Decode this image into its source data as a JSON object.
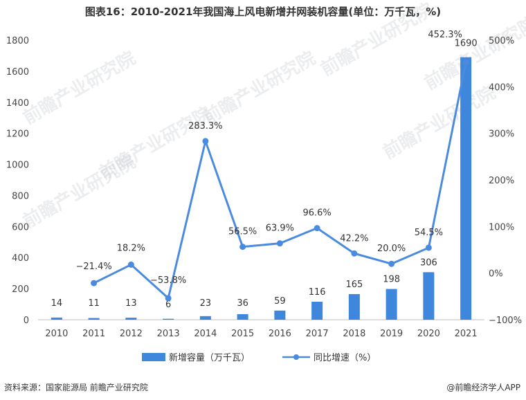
{
  "chart_data": {
    "type": "bar+line",
    "title": "图表16：2010-2021年我国海上风电新增并网装机容量(单位：万千瓦，%)",
    "categories": [
      "2010",
      "2011",
      "2012",
      "2013",
      "2014",
      "2015",
      "2016",
      "2017",
      "2018",
      "2019",
      "2020",
      "2021"
    ],
    "series": [
      {
        "name": "新增容量（万千瓦）",
        "type": "bar",
        "axis": "left",
        "values": [
          14,
          11,
          13,
          6,
          23,
          36,
          59,
          116,
          165,
          198,
          306,
          1690
        ],
        "labels": [
          "14",
          "11",
          "13",
          "6",
          "23",
          "36",
          "59",
          "116",
          "165",
          "198",
          "306",
          "1690"
        ]
      },
      {
        "name": "同比增速（%）",
        "type": "line",
        "axis": "right",
        "values": [
          null,
          -21.4,
          18.2,
          -53.8,
          283.3,
          56.5,
          63.9,
          96.6,
          42.2,
          20.0,
          54.5,
          452.3
        ],
        "labels": [
          "",
          "−21.4%",
          "18.2%",
          "−53.8%",
          "283.3%",
          "56.5%",
          "63.9%",
          "96.6%",
          "42.2%",
          "20.0%",
          "54.5%",
          "452.3%"
        ]
      }
    ],
    "y_left": {
      "min": 0,
      "max": 1800,
      "ticks": [
        "0",
        "200",
        "400",
        "600",
        "800",
        "1000",
        "1200",
        "1400",
        "1600",
        "1800"
      ]
    },
    "y_right": {
      "min": -100,
      "max": 500,
      "ticks": [
        "−100%",
        "0%",
        "100%",
        "200%",
        "300%",
        "400%",
        "500%"
      ]
    },
    "legend_position": "bottom-center",
    "colors": {
      "bar": "#3f86dd",
      "line": "#4a8be0",
      "text": "#333333",
      "axis": "#bfbfbf"
    }
  },
  "footer": {
    "source": "资料来源：国家能源局 前瞻产业研究院",
    "brand": "@前瞻经济学人APP"
  },
  "watermark": {
    "text": "前瞻产业研究院"
  }
}
